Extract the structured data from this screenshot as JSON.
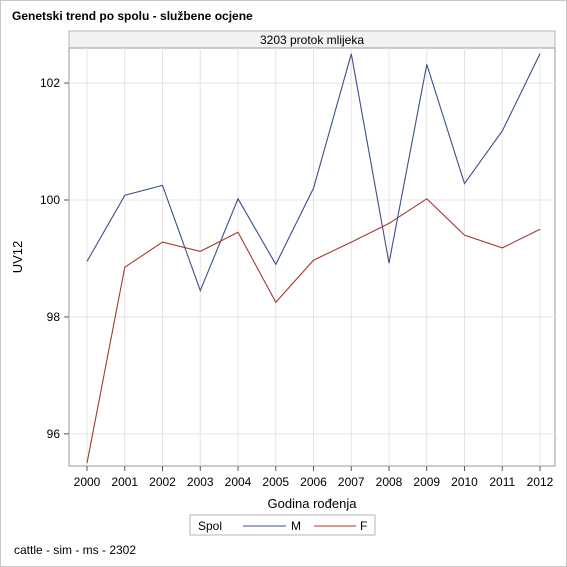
{
  "page_title": "Genetski trend po spolu - službene ocjene",
  "footnote": "cattle - sim - ms - 2302",
  "chart_data": {
    "type": "line",
    "panel_label": "3203 protok mlijeka",
    "xlabel": "Godina rođenja",
    "ylabel": "UV12",
    "categories": [
      "2000",
      "2001",
      "2002",
      "2003",
      "2004",
      "2005",
      "2006",
      "2007",
      "2008",
      "2009",
      "2010",
      "2011",
      "2012"
    ],
    "yticks": [
      96,
      98,
      100,
      102
    ],
    "ylim": [
      95.45,
      102.6
    ],
    "grid": true,
    "legend": {
      "title": "Spol",
      "position": "bottom-center"
    },
    "series": [
      {
        "name": "M",
        "color": "#3b4f8c",
        "values": [
          98.95,
          100.08,
          100.25,
          98.45,
          100.02,
          98.9,
          100.2,
          102.5,
          98.92,
          102.32,
          100.28,
          101.18,
          102.5
        ]
      },
      {
        "name": "F",
        "color": "#a23a32",
        "values": [
          95.5,
          98.85,
          99.28,
          99.12,
          99.45,
          98.25,
          98.97,
          99.28,
          99.6,
          100.02,
          99.4,
          99.18,
          99.5
        ]
      }
    ]
  }
}
